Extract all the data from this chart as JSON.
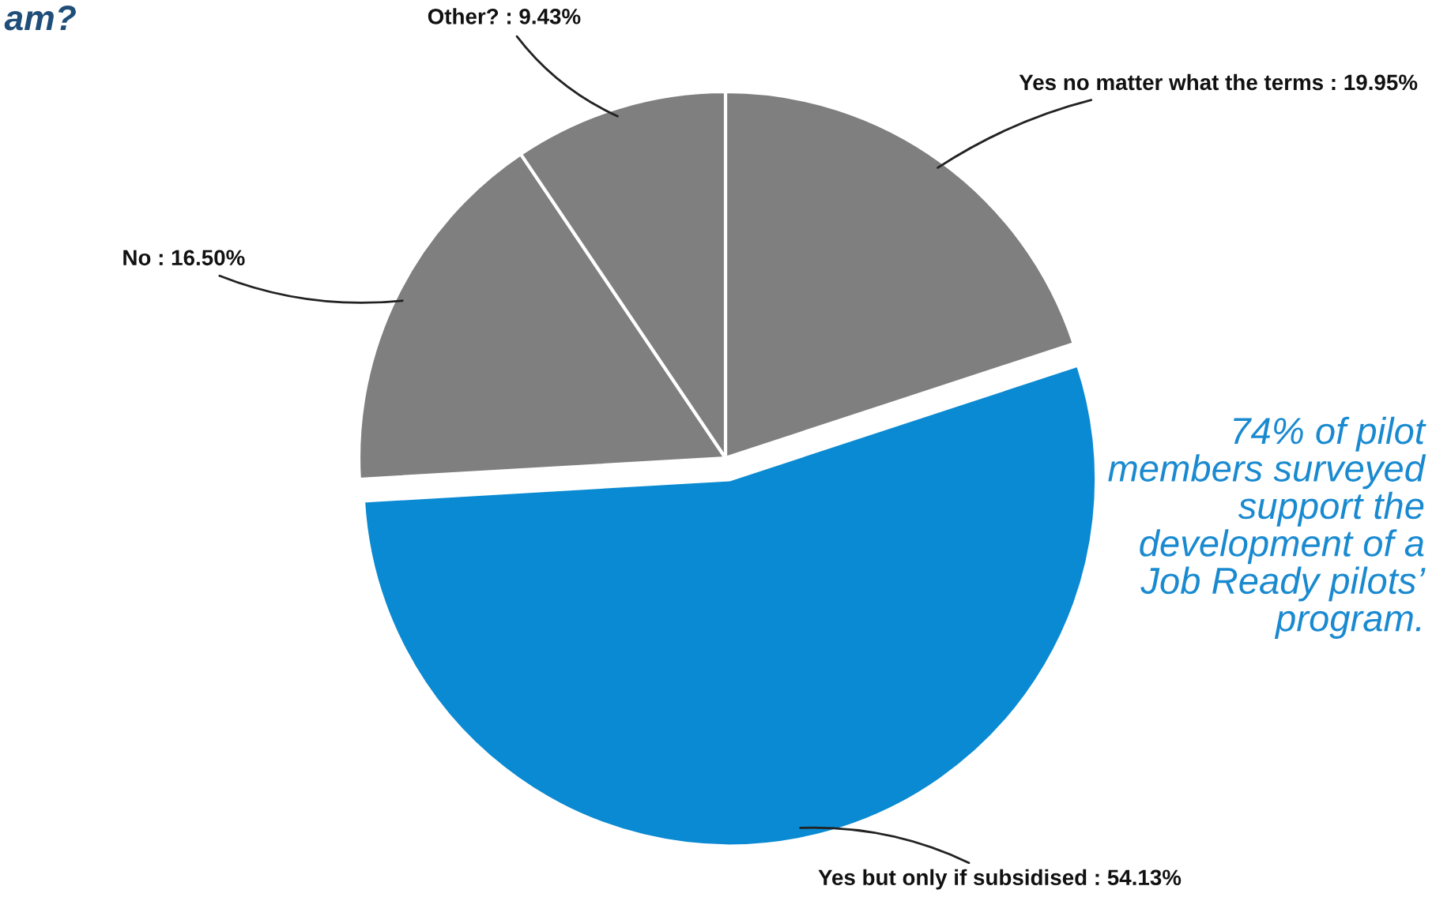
{
  "chart_data": {
    "type": "pie",
    "title": "am?",
    "categories": [
      "Yes no matter what the terms : 19.95%",
      "Yes but only if subsidised : 54.13%",
      "No : 16.50%",
      "Other? : 9.43%"
    ],
    "values": [
      19.95,
      54.13,
      16.5,
      9.43
    ],
    "colors": [
      "#7f7f7f",
      "#0a8ad2",
      "#7f7f7f",
      "#7f7f7f"
    ],
    "annotations": [
      "74% of pilot\nmembers surveyed\nsupport the\ndevelopment of a\nJob Ready pilots’\nprogram."
    ]
  }
}
